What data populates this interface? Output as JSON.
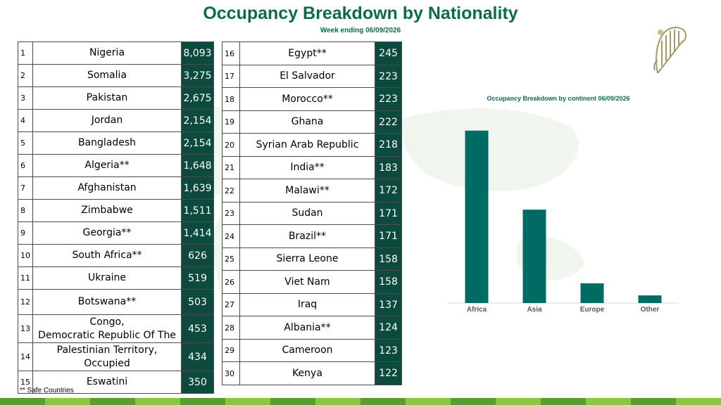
{
  "header": {
    "title": "Occupancy Breakdown by Nationality",
    "subtitle": "Week ending 06/09/2026"
  },
  "table_left": [
    {
      "rank": "1",
      "name": "Nigeria",
      "value": "8,093"
    },
    {
      "rank": "2",
      "name": "Somalia",
      "value": "3,275"
    },
    {
      "rank": "3",
      "name": "Pakistan",
      "value": "2,675"
    },
    {
      "rank": "4",
      "name": "Jordan",
      "value": "2,154"
    },
    {
      "rank": "5",
      "name": "Bangladesh",
      "value": "2,154"
    },
    {
      "rank": "6",
      "name": "Algeria**",
      "value": "1,648"
    },
    {
      "rank": "7",
      "name": "Afghanistan",
      "value": "1,639"
    },
    {
      "rank": "8",
      "name": "Zimbabwe",
      "value": "1,511"
    },
    {
      "rank": "9",
      "name": "Georgia**",
      "value": "1,414"
    },
    {
      "rank": "10",
      "name": "South Africa**",
      "value": "626"
    },
    {
      "rank": "11",
      "name": "Ukraine",
      "value": "519"
    },
    {
      "rank": "12",
      "name": "Botswana**",
      "value": "503"
    },
    {
      "rank": "13",
      "name": "Congo,\nDemocratic Republic Of The",
      "value": "453"
    },
    {
      "rank": "14",
      "name": "Palestinian Territory,\nOccupied",
      "value": "434"
    },
    {
      "rank": "15",
      "name": "Eswatini",
      "value": "350"
    }
  ],
  "table_right": [
    {
      "rank": "16",
      "name": "Egypt**",
      "value": "245"
    },
    {
      "rank": "17",
      "name": "El Salvador",
      "value": "223"
    },
    {
      "rank": "18",
      "name": "Morocco**",
      "value": "223"
    },
    {
      "rank": "19",
      "name": "Ghana",
      "value": "222"
    },
    {
      "rank": "20",
      "name": "Syrian Arab Republic",
      "value": "218"
    },
    {
      "rank": "21",
      "name": "India**",
      "value": "183"
    },
    {
      "rank": "22",
      "name": "Malawi**",
      "value": "172"
    },
    {
      "rank": "23",
      "name": "Sudan",
      "value": "171"
    },
    {
      "rank": "24",
      "name": "Brazil**",
      "value": "171"
    },
    {
      "rank": "25",
      "name": "Sierra Leone",
      "value": "158"
    },
    {
      "rank": "26",
      "name": "Viet Nam",
      "value": "158"
    },
    {
      "rank": "27",
      "name": "Iraq",
      "value": "137"
    },
    {
      "rank": "28",
      "name": "Albania**",
      "value": "124"
    },
    {
      "rank": "29",
      "name": "Cameroon",
      "value": "123"
    },
    {
      "rank": "30",
      "name": "Kenya",
      "value": "122"
    }
  ],
  "footnote": "** Safe Countries",
  "chart_data": {
    "type": "bar",
    "title": "Occupancy Breakdown by continent 06/09/2026",
    "categories": [
      "Africa",
      "Asia",
      "Europe",
      "Other"
    ],
    "values": [
      19200,
      10400,
      2200,
      850
    ],
    "ylim": [
      0,
      22000
    ],
    "grid": false,
    "bar_color": "#006b63"
  },
  "colors": {
    "title": "#0c6b4e",
    "value_cell": "#0b4a3c",
    "bottom_bar": [
      "#5a9e33",
      "#8cc63f"
    ]
  },
  "logo": {
    "name": "harp-emblem-icon"
  }
}
